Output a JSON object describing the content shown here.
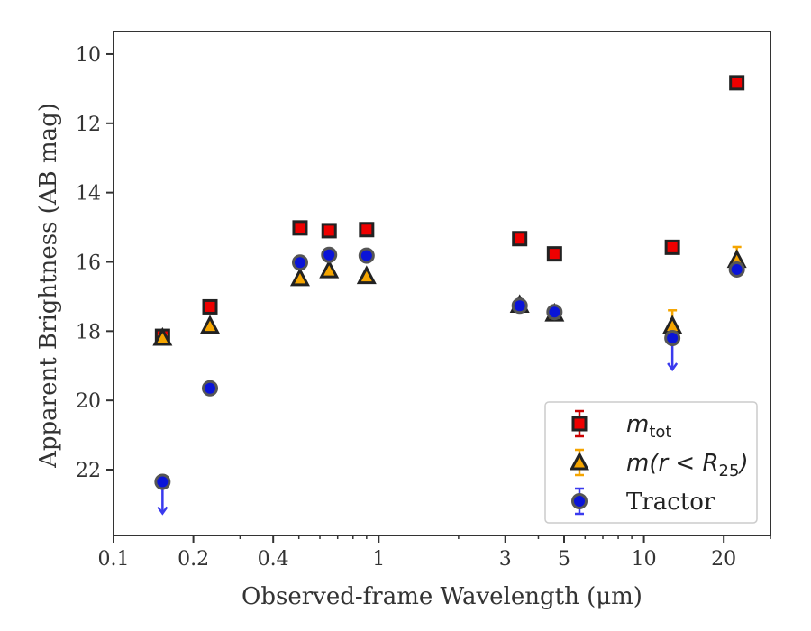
{
  "chart_data": {
    "type": "scatter",
    "title": "",
    "xlabel": "Observed-frame Wavelength (μm)",
    "ylabel": "Apparent Brightness (AB mag)",
    "xscale": "log",
    "xlim": [
      0.1,
      30
    ],
    "ylim": [
      23.9,
      9.35
    ],
    "y_inverted": true,
    "xticks": [
      {
        "value": 0.1,
        "label": "0.1"
      },
      {
        "value": 0.2,
        "label": "0.2"
      },
      {
        "value": 0.4,
        "label": "0.4"
      },
      {
        "value": 1,
        "label": "1"
      },
      {
        "value": 3,
        "label": "3"
      },
      {
        "value": 5,
        "label": "5"
      },
      {
        "value": 10,
        "label": "10"
      },
      {
        "value": 20,
        "label": "20"
      }
    ],
    "yticks": [
      {
        "value": 10,
        "label": "10"
      },
      {
        "value": 12,
        "label": "12"
      },
      {
        "value": 14,
        "label": "14"
      },
      {
        "value": 16,
        "label": "16"
      },
      {
        "value": 18,
        "label": "18"
      },
      {
        "value": 20,
        "label": "20"
      },
      {
        "value": 22,
        "label": "22"
      }
    ],
    "grid": false,
    "legend_position": "lower-right",
    "series": [
      {
        "name": "m_tot",
        "legend_label": {
          "main": "m",
          "sub": "tot"
        },
        "marker": "square",
        "fill": "#ee0000",
        "edge": "#222222",
        "errcolor": "#cc0000",
        "points": [
          {
            "x": 0.153,
            "y": 18.15,
            "err": 0.08
          },
          {
            "x": 0.231,
            "y": 17.3,
            "err": 0.05
          },
          {
            "x": 0.505,
            "y": 15.02,
            "err": 0.03
          },
          {
            "x": 0.65,
            "y": 15.1,
            "err": 0.03
          },
          {
            "x": 0.9,
            "y": 15.07,
            "err": 0.03
          },
          {
            "x": 3.4,
            "y": 15.33,
            "err": 0.03
          },
          {
            "x": 4.6,
            "y": 15.77,
            "err": 0.03
          },
          {
            "x": 12.8,
            "y": 15.58,
            "err": 0.05
          },
          {
            "x": 22.4,
            "y": 10.83,
            "err": 0.05
          }
        ]
      },
      {
        "name": "m(r < R25)",
        "legend_label": {
          "main": "m(r < R",
          "sub": "25",
          "tail": ")"
        },
        "marker": "triangle",
        "fill": "#f5a500",
        "edge": "#222222",
        "errcolor": "#f5a500",
        "points": [
          {
            "x": 0.153,
            "y": 18.2,
            "err": 0.08
          },
          {
            "x": 0.231,
            "y": 17.85,
            "err": 0.05
          },
          {
            "x": 0.505,
            "y": 16.48,
            "err": 0.03
          },
          {
            "x": 0.65,
            "y": 16.25,
            "err": 0.03
          },
          {
            "x": 0.9,
            "y": 16.42,
            "err": 0.03
          },
          {
            "x": 3.4,
            "y": 17.25,
            "err": 0.03
          },
          {
            "x": 4.6,
            "y": 17.5,
            "err": 0.03
          },
          {
            "x": 12.8,
            "y": 17.85,
            "err": 0.45
          },
          {
            "x": 22.4,
            "y": 15.95,
            "err": 0.38
          }
        ]
      },
      {
        "name": "Tractor",
        "legend_label": {
          "main": "Tractor"
        },
        "marker": "circle",
        "fill": "#0a14d8",
        "edge": "#555555",
        "errcolor": "#3a3aee",
        "points": [
          {
            "x": 0.153,
            "y": 22.35,
            "upper_limit": true
          },
          {
            "x": 0.231,
            "y": 19.65,
            "err": 0.05
          },
          {
            "x": 0.505,
            "y": 16.02,
            "err": 0.03
          },
          {
            "x": 0.65,
            "y": 15.8,
            "err": 0.03
          },
          {
            "x": 0.9,
            "y": 15.82,
            "err": 0.03
          },
          {
            "x": 3.4,
            "y": 17.27,
            "err": 0.03
          },
          {
            "x": 4.6,
            "y": 17.45,
            "err": 0.03
          },
          {
            "x": 12.8,
            "y": 18.2,
            "upper_limit": true
          },
          {
            "x": 22.4,
            "y": 16.22,
            "err": 0.05
          }
        ]
      }
    ]
  }
}
